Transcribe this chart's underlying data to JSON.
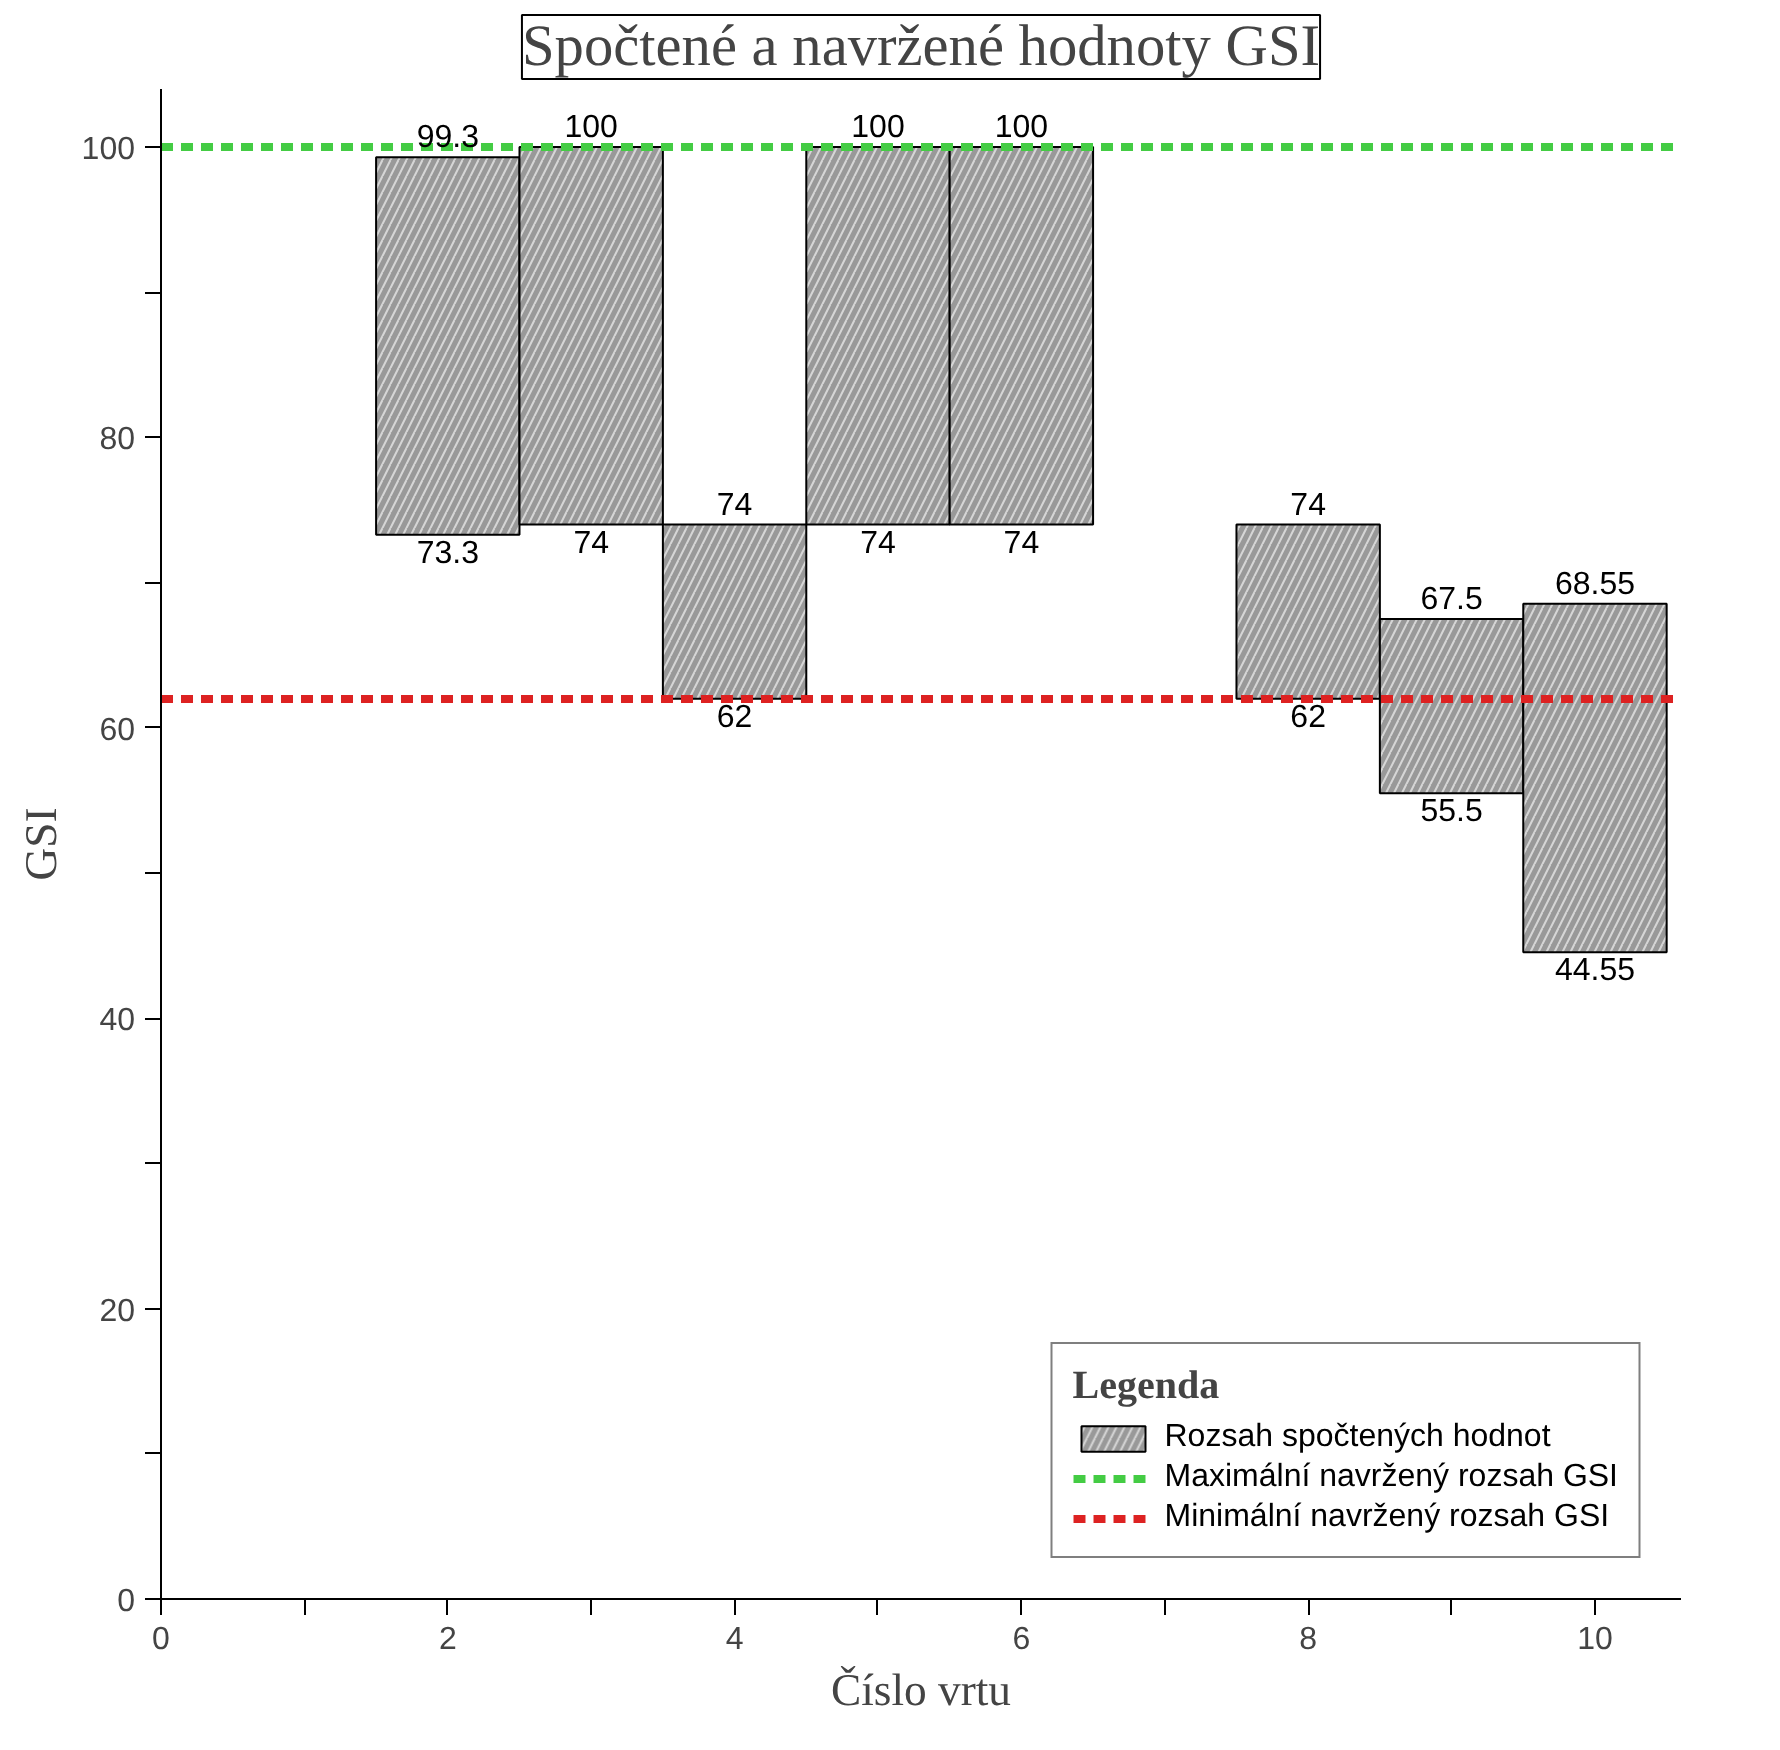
{
  "chart_data": {
    "type": "bar",
    "title": "Spočtené a navržené hodnoty GSI",
    "xlabel": "Číslo vrtu",
    "ylabel": "GSI",
    "x": [
      2,
      3,
      4,
      5,
      6,
      8,
      9,
      10
    ],
    "series": [
      {
        "name": "Rozsah spočtených hodnot",
        "color": "#999999",
        "base": [
          73.3,
          74,
          62,
          74,
          74,
          62,
          55.5,
          44.55
        ],
        "values": [
          26,
          26,
          12,
          26,
          26,
          12,
          12,
          24
        ]
      }
    ],
    "ref_lines": [
      {
        "axis": "y",
        "value": 100,
        "label": "Maximální navržený rozsah GSI",
        "color": "#44cc44",
        "line_style": "dashed"
      },
      {
        "axis": "y",
        "value": 62,
        "label": "Minimální navržený rozsah GSI",
        "color": "#dd2222",
        "line_style": "dashed"
      }
    ],
    "annotations": [
      {
        "text": "99.3",
        "x": 2,
        "y": 99.3
      },
      {
        "text": "73.3",
        "x": 2,
        "y": 73.3
      },
      {
        "text": "100",
        "x": 3,
        "y": 100
      },
      {
        "text": "74",
        "x": 3,
        "y": 74
      },
      {
        "text": "74",
        "x": 4,
        "y": 74
      },
      {
        "text": "62",
        "x": 4,
        "y": 62
      },
      {
        "text": "100",
        "x": 5,
        "y": 100
      },
      {
        "text": "74",
        "x": 5,
        "y": 74
      },
      {
        "text": "100",
        "x": 6,
        "y": 100
      },
      {
        "text": "74",
        "x": 6,
        "y": 74
      },
      {
        "text": "74",
        "x": 8,
        "y": 74
      },
      {
        "text": "62",
        "x": 8,
        "y": 62
      },
      {
        "text": "67.5",
        "x": 9,
        "y": 67.5
      },
      {
        "text": "55.5",
        "x": 9,
        "y": 55.5
      },
      {
        "text": "68.55",
        "x": 10,
        "y": 68.55
      },
      {
        "text": "44.55",
        "x": 10,
        "y": 44.55
      }
    ],
    "xlim": [
      0,
      10.6
    ],
    "ylim": [
      0,
      104
    ],
    "xticks": [
      0,
      {
        "value": 1,
        "label": null
      },
      2,
      {
        "value": 3,
        "label": null
      },
      4,
      {
        "value": 5,
        "label": null
      },
      6,
      {
        "value": 7,
        "label": null
      },
      8,
      {
        "value": 9,
        "label": null
      },
      10
    ],
    "yticks": [
      0,
      {
        "value": 10,
        "label": null
      },
      20,
      {
        "value": 30,
        "label": null
      },
      40,
      {
        "value": 50,
        "label": null
      },
      60,
      {
        "value": 70,
        "label": null
      },
      80,
      {
        "value": 90,
        "label": null
      },
      100
    ],
    "legend_title": "Legenda",
    "legend": "bottom right",
    "grid": false
  }
}
